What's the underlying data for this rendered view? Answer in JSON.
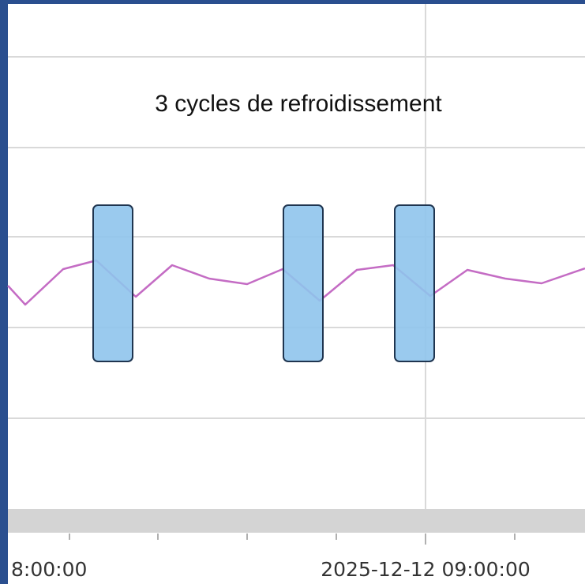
{
  "annotation": "3 cycles de refroidissement",
  "x_labels": [
    "8:00:00",
    "2025-12-12 09:00:00"
  ]
}
